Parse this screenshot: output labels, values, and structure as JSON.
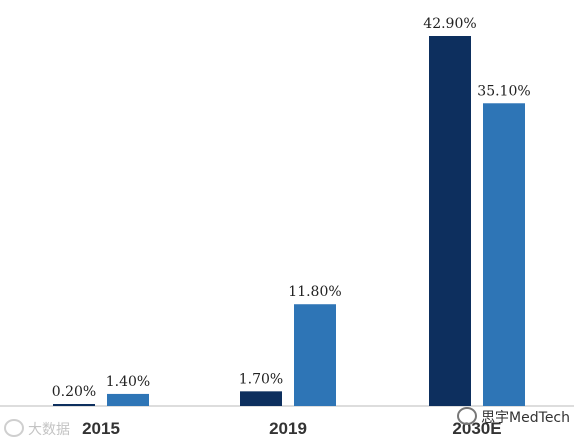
{
  "chart_data": {
    "type": "bar",
    "title": "",
    "xlabel": "",
    "ylabel": "",
    "ylim": [
      0,
      45
    ],
    "grid": false,
    "categories": [
      "2015",
      "2019",
      "2030E"
    ],
    "series": [
      {
        "values": [
          0.2,
          1.7,
          42.9
        ],
        "labels": [
          "0.20%",
          "1.70%",
          "42.90%"
        ],
        "color": "#0d2f5e"
      },
      {
        "values": [
          1.4,
          11.8,
          35.1
        ],
        "labels": [
          "1.40%",
          "11.80%",
          "35.10%"
        ],
        "color": "#2e75b6"
      }
    ]
  },
  "watermarks": {
    "left": "大数据",
    "right": "思宇MedTech"
  }
}
